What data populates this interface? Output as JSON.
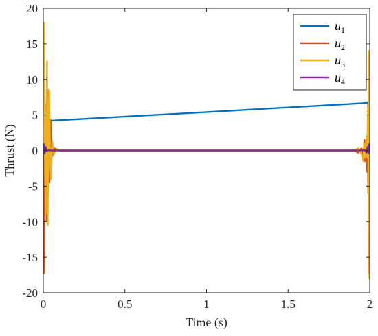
{
  "chart_data": {
    "type": "line",
    "xlabel": "Time (s)",
    "ylabel": "Thrust (N)",
    "xlim": [
      0,
      2
    ],
    "ylim": [
      -20,
      20
    ],
    "x_ticks": [
      0,
      0.5,
      1,
      1.5,
      2
    ],
    "x_tick_labels": [
      "0",
      "0.5",
      "1",
      "1.5",
      "2"
    ],
    "y_ticks": [
      -20,
      -15,
      -10,
      -5,
      0,
      5,
      10,
      15,
      20
    ],
    "y_tick_labels": [
      "-20",
      "-15",
      "-10",
      "-5",
      "0",
      "5",
      "10",
      "15",
      "20"
    ],
    "grid": false,
    "legend_position": "top-right",
    "series": [
      {
        "name": "u1",
        "legend_base": "u",
        "legend_sub": "1",
        "color": "#0072BD",
        "x": [
          0,
          0.05,
          1.0,
          1.99,
          2.0
        ],
        "y": [
          0,
          4.2,
          5.4,
          6.7,
          0
        ]
      },
      {
        "name": "u2",
        "legend_base": "u",
        "legend_sub": "2",
        "color": "#D95319",
        "x": [
          0,
          0.003,
          0.006,
          0.01,
          0.013,
          0.016,
          0.02,
          0.024,
          0.028,
          0.033,
          0.038,
          0.045,
          0.055,
          0.07,
          0.1,
          1.0,
          1.9,
          1.93,
          1.95,
          1.962,
          1.967,
          1.972,
          1.976,
          1.98,
          1.984,
          1.988,
          1.991,
          1.994,
          1.997,
          2.0
        ],
        "y": [
          0,
          -17.3,
          -8,
          4,
          6.5,
          1,
          -10,
          -3,
          8.5,
          1.5,
          -4.5,
          4.3,
          -0.8,
          0.3,
          0,
          0,
          0,
          -0.3,
          0.3,
          -0.8,
          1.5,
          -1.5,
          1,
          0.8,
          -3,
          3,
          -6,
          9,
          -17.3,
          -15
        ]
      },
      {
        "name": "u3",
        "legend_base": "u",
        "legend_sub": "3",
        "color": "#EDB120",
        "x": [
          0,
          0.003,
          0.007,
          0.011,
          0.015,
          0.019,
          0.023,
          0.027,
          0.031,
          0.036,
          0.041,
          0.047,
          0.055,
          0.065,
          0.08,
          0.1,
          1.0,
          1.9,
          1.93,
          1.95,
          1.96,
          1.966,
          1.971,
          1.976,
          1.981,
          1.985,
          1.989,
          1.992,
          1.995,
          1.998,
          2.0
        ],
        "y": [
          17.8,
          18,
          10,
          -3,
          -9,
          6,
          12.5,
          -10.5,
          2,
          8.5,
          -1,
          -4,
          1.2,
          -0.5,
          0.2,
          0,
          0,
          0,
          0.3,
          -0.5,
          -1.5,
          1,
          -1,
          1,
          2,
          -1,
          6,
          -3,
          14,
          -18,
          2
        ]
      },
      {
        "name": "u4",
        "legend_base": "u",
        "legend_sub": "4",
        "color": "#7E2F8E",
        "x": [
          0,
          0.003,
          0.008,
          0.014,
          0.02,
          0.03,
          0.05,
          1.0,
          1.95,
          1.97,
          1.98,
          1.986,
          1.992,
          1.997,
          2.0
        ],
        "y": [
          0.2,
          0.9,
          -0.4,
          0.5,
          -0.1,
          0.05,
          0,
          0,
          0,
          0.05,
          -0.3,
          0.5,
          -0.4,
          0.9,
          0.2
        ]
      }
    ]
  }
}
